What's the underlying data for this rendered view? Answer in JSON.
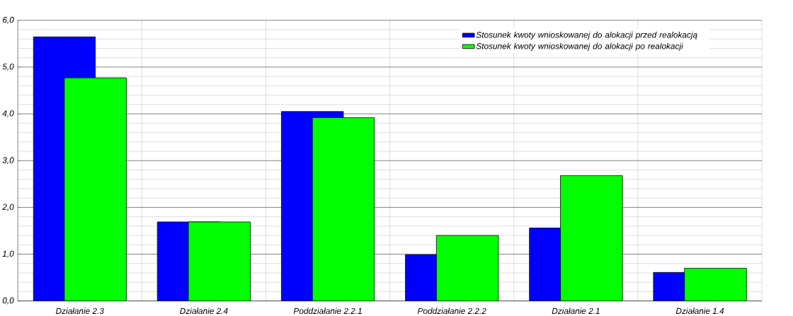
{
  "chart_data": {
    "type": "bar",
    "categories": [
      "Działanie 2.3",
      "Działanie 2.4",
      "Poddziałanie 2.2.1",
      "Poddziałanie 2.2.2",
      "Działanie 2.1",
      "Działanie 1.4"
    ],
    "series": [
      {
        "name": "Stosunek kwoty wnioskowanej do alokacji przed realokacją",
        "color": "#0000ff",
        "values": [
          5.65,
          1.69,
          4.05,
          0.99,
          1.56,
          0.61
        ]
      },
      {
        "name": "Stosunek kwoty wnioskowanej do alokacji po realokacji",
        "color": "#00ff00",
        "values": [
          4.77,
          1.69,
          3.92,
          1.4,
          2.68,
          0.7
        ]
      }
    ],
    "ylim": [
      0,
      6
    ],
    "yticks": [
      {
        "value": 0,
        "label": "0,0"
      },
      {
        "value": 1,
        "label": "1,0"
      },
      {
        "value": 2,
        "label": "2,0"
      },
      {
        "value": 3,
        "label": "3,0"
      },
      {
        "value": 4,
        "label": "4,0"
      },
      {
        "value": 5,
        "label": "5,0"
      },
      {
        "value": 6,
        "label": "6,0"
      }
    ],
    "grid": true,
    "legend": "top right"
  }
}
